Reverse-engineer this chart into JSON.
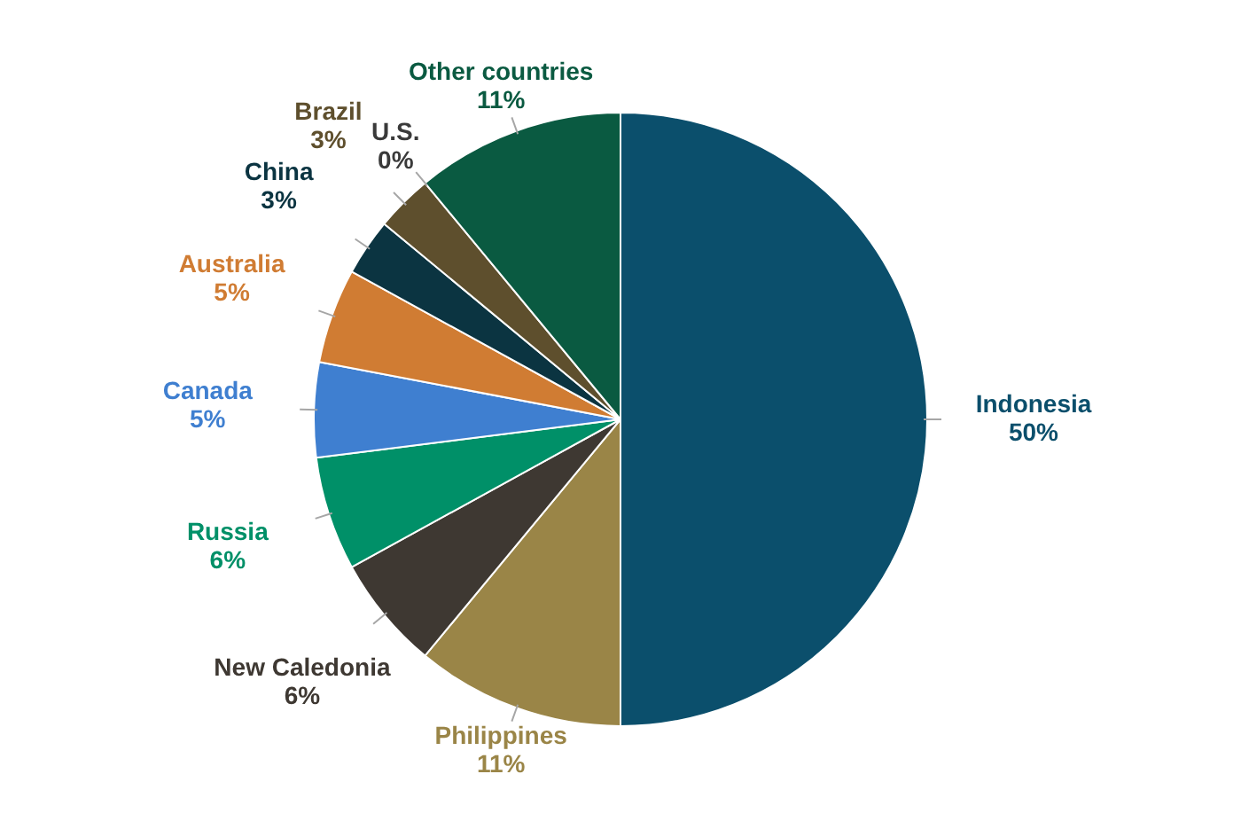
{
  "chart_data": {
    "type": "pie",
    "categories": [
      "Indonesia",
      "Philippines",
      "New Caledonia",
      "Russia",
      "Canada",
      "Australia",
      "China",
      "Brazil",
      "U.S.",
      "Other countries"
    ],
    "values": [
      50,
      11,
      6,
      6,
      5,
      5,
      3,
      3,
      0,
      11
    ],
    "value_labels": [
      "50%",
      "11%",
      "6%",
      "6%",
      "5%",
      "5%",
      "3%",
      "3%",
      "0%",
      "11%"
    ],
    "colors": [
      "#0b4f6c",
      "#9a8547",
      "#3e3832",
      "#009068",
      "#3f7fd0",
      "#d07c33",
      "#0b3441",
      "#5e4f2d",
      "#3a3a3a",
      "#0a5a41"
    ],
    "legend": false
  }
}
